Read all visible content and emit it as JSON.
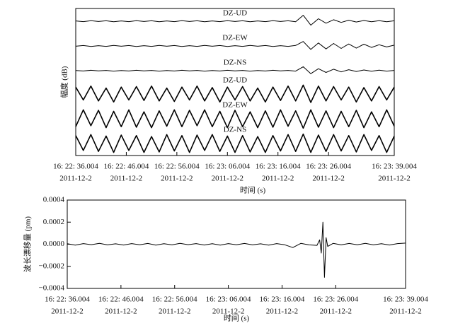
{
  "chart_data": [
    {
      "type": "line",
      "ylabel": "幅度 (dB)",
      "xlabel": "时间 (s)",
      "xlim": [
        0,
        63
      ],
      "xticks": [
        {
          "value": 0,
          "label": "16: 22: 36.004"
        },
        {
          "value": 10,
          "label": "16: 22: 46.004"
        },
        {
          "value": 20,
          "label": "16: 22: 56.004"
        },
        {
          "value": 30,
          "label": "16: 23: 06.004"
        },
        {
          "value": 40,
          "label": "16: 23: 16.004"
        },
        {
          "value": 50,
          "label": "16: 23: 26.004"
        },
        {
          "value": 63,
          "label": "16: 23: 39.004"
        }
      ],
      "xtick_dates": [
        "2011-12-2",
        "2011-12-2",
        "2011-12-2",
        "2011-12-2",
        "2011-12-2",
        "2011-12-2",
        "2011-12-2"
      ],
      "x": [
        0,
        1.5,
        3,
        4.5,
        6,
        7.5,
        9,
        10.5,
        12,
        13.5,
        15,
        16.5,
        18,
        19.5,
        21,
        22.5,
        24,
        25.5,
        27,
        28.5,
        30,
        31.5,
        33,
        34.5,
        36,
        37.5,
        39,
        40.5,
        42,
        43.5,
        45,
        46.5,
        48,
        49.5,
        51,
        52.5,
        54,
        55.5,
        57,
        58.5,
        60,
        61.5,
        63
      ],
      "series": [
        {
          "name": "DZ-UD",
          "color": "#000000",
          "values": [
            0.03,
            -0.04,
            0.05,
            -0.03,
            0.04,
            -0.05,
            0.03,
            -0.04,
            0.05,
            -0.03,
            0.04,
            -0.05,
            0.03,
            -0.04,
            0.05,
            -0.03,
            0.04,
            -0.05,
            0.03,
            -0.04,
            0.05,
            -0.03,
            0.04,
            -0.05,
            0.03,
            -0.04,
            0.05,
            -0.03,
            0.04,
            -0.05,
            0.6,
            -0.4,
            0.25,
            -0.2,
            0.15,
            -0.12,
            0.1,
            -0.08,
            0.07,
            -0.06,
            0.05,
            -0.05,
            0.04
          ]
        },
        {
          "name": "DZ-EW",
          "color": "#000000",
          "values": [
            -0.03,
            0.04,
            -0.05,
            0.03,
            -0.04,
            0.05,
            -0.03,
            0.04,
            -0.05,
            0.03,
            -0.04,
            0.05,
            -0.03,
            0.04,
            -0.05,
            0.03,
            -0.04,
            0.05,
            -0.03,
            0.04,
            -0.05,
            0.03,
            -0.04,
            0.05,
            -0.03,
            0.04,
            -0.05,
            0.03,
            -0.04,
            0.05,
            0.45,
            -0.35,
            0.3,
            -0.3,
            0.25,
            -0.25,
            0.2,
            -0.22,
            0.18,
            -0.15,
            0.12,
            -0.1,
            0.08
          ]
        },
        {
          "name": "DZ-NS",
          "color": "#000000",
          "values": [
            0.02,
            -0.03,
            0.04,
            -0.02,
            0.03,
            -0.04,
            0.02,
            -0.03,
            0.04,
            -0.02,
            0.03,
            -0.04,
            0.02,
            -0.03,
            0.04,
            -0.02,
            0.03,
            -0.04,
            0.02,
            -0.03,
            0.04,
            -0.02,
            0.03,
            -0.04,
            0.02,
            -0.03,
            0.04,
            -0.02,
            0.03,
            -0.04,
            0.4,
            -0.3,
            0.2,
            -0.18,
            0.15,
            -0.12,
            0.1,
            -0.08,
            0.07,
            -0.06,
            0.05,
            -0.04,
            0.03
          ]
        },
        {
          "name": "DZ-UD",
          "color": "#000000",
          "values": [
            0.7,
            -0.6,
            0.8,
            -0.7,
            0.6,
            -0.8,
            0.7,
            -0.6,
            0.75,
            -0.65,
            0.8,
            -0.7,
            0.6,
            -0.75,
            0.7,
            -0.6,
            0.8,
            -0.7,
            0.65,
            -0.8,
            0.7,
            -0.6,
            0.75,
            -0.7,
            0.6,
            -0.8,
            0.7,
            -0.65,
            0.8,
            -0.7,
            0.9,
            -0.85,
            0.8,
            -0.7,
            0.75,
            -0.6,
            0.7,
            -0.8,
            0.65,
            -0.7,
            0.75,
            -0.6,
            0.7
          ]
        },
        {
          "name": "DZ-EW",
          "color": "#000000",
          "values": [
            -0.8,
            0.9,
            -0.7,
            0.85,
            -0.9,
            0.75,
            -0.8,
            0.9,
            -0.85,
            0.7,
            -0.9,
            0.8,
            -0.75,
            0.9,
            -0.8,
            0.85,
            -0.7,
            0.9,
            -0.8,
            0.75,
            -0.9,
            0.85,
            -0.8,
            0.7,
            -0.9,
            0.8,
            -0.85,
            0.9,
            -0.75,
            0.8,
            -0.95,
            0.9,
            -0.85,
            0.8,
            -0.9,
            0.75,
            -0.8,
            0.85,
            -0.9,
            0.7,
            -0.8,
            0.9,
            -0.75
          ]
        },
        {
          "name": "DZ-NS",
          "color": "#000000",
          "values": [
            0.8,
            -0.7,
            0.9,
            -0.8,
            0.75,
            -0.9,
            0.85,
            -0.7,
            0.8,
            -0.9,
            0.7,
            -0.85,
            0.9,
            -0.75,
            0.8,
            -0.9,
            0.85,
            -0.7,
            0.9,
            -0.8,
            0.75,
            -0.9,
            0.8,
            -0.85,
            0.7,
            -0.9,
            0.8,
            -0.75,
            0.9,
            -0.8,
            0.95,
            -0.9,
            0.85,
            -0.8,
            0.9,
            -0.75,
            0.8,
            -0.85,
            0.9,
            -0.7,
            0.8,
            -0.9,
            0.75
          ]
        }
      ]
    },
    {
      "type": "line",
      "ylabel": "波长漂移量 (pm)",
      "xlabel": "时间 (s)",
      "xlim": [
        0,
        63
      ],
      "ylim": [
        -0.0004,
        0.0004
      ],
      "yticks": [
        {
          "value": 0.0004,
          "label": "0.0004"
        },
        {
          "value": 0.0002,
          "label": "0.0002"
        },
        {
          "value": 0,
          "label": "0.0000"
        },
        {
          "value": -0.0002,
          "label": "−0.0002"
        },
        {
          "value": -0.0004,
          "label": "−0.0004"
        }
      ],
      "xticks": [
        {
          "value": 0,
          "label": "16: 22: 36.004"
        },
        {
          "value": 10,
          "label": "16: 22: 46.004"
        },
        {
          "value": 20,
          "label": "16: 22: 56.004"
        },
        {
          "value": 30,
          "label": "16: 23: 06.004"
        },
        {
          "value": 40,
          "label": "16: 23: 16.004"
        },
        {
          "value": 50,
          "label": "16: 23: 26.004"
        },
        {
          "value": 63,
          "label": "16: 23: 39.004"
        }
      ],
      "xtick_dates": [
        "2011-12-2",
        "2011-12-2",
        "2011-12-2",
        "2011-12-2",
        "2011-12-2",
        "2011-12-2",
        "2011-12-2"
      ],
      "x": [
        0,
        1.5,
        3,
        4.5,
        6,
        7.5,
        9,
        10.5,
        12,
        13.5,
        15,
        16.5,
        18,
        19.5,
        21,
        22.5,
        24,
        25.5,
        27,
        28.5,
        30,
        31.5,
        33,
        34.5,
        36,
        37.5,
        39,
        40.5,
        42,
        43.5,
        45,
        46.5,
        47,
        47.3,
        47.6,
        47.9,
        48.2,
        48.5,
        49.5,
        51,
        52.5,
        54,
        55.5,
        57,
        58.5,
        60,
        61.5,
        63
      ],
      "series": [
        {
          "name": null,
          "color": "#000000",
          "values": [
            5e-06,
            -8e-06,
            6e-06,
            -4e-06,
            8e-06,
            -6e-06,
            4e-06,
            -7e-06,
            6e-06,
            -5e-06,
            7e-06,
            -8e-06,
            5e-06,
            -6e-06,
            8e-06,
            -4e-06,
            6e-06,
            -7e-06,
            5e-06,
            -8e-06,
            6e-06,
            -5e-06,
            7e-06,
            -6e-06,
            4e-06,
            -8e-06,
            6e-06,
            -5e-06,
            -3e-05,
            8e-06,
            -6e-06,
            -1e-05,
            4e-05,
            -8e-05,
            0.0002,
            -0.0003,
            6e-05,
            -2e-05,
            8e-06,
            -6e-06,
            7e-06,
            -5e-06,
            8e-06,
            -6e-06,
            5e-06,
            -7e-06,
            6e-06,
            1e-05
          ]
        }
      ]
    }
  ]
}
